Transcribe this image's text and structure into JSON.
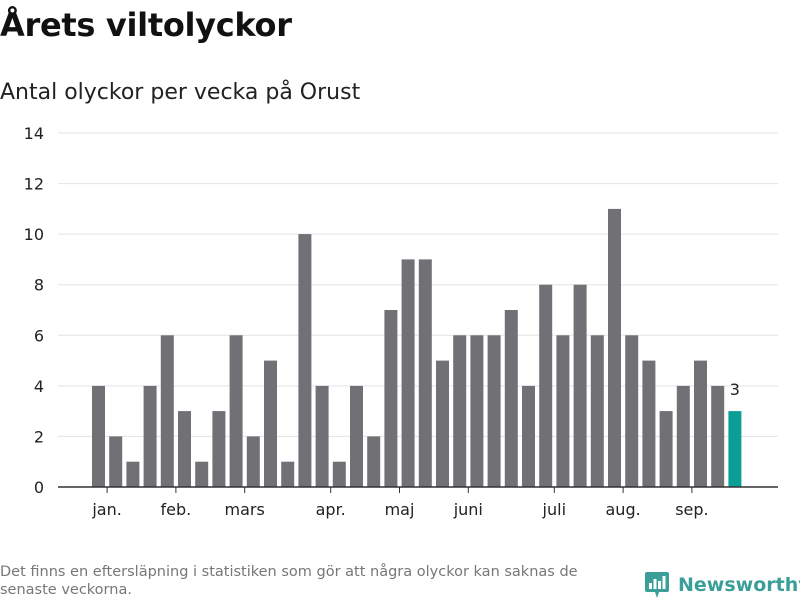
{
  "header": {
    "title": "Årets viltolyckor",
    "subtitle": "Antal olyckor per vecka på Orust"
  },
  "footer": {
    "note": "Det finns en eftersläpning i statistiken som gör att några olyckor kan saknas de senaste veckorna.",
    "brand": "Newsworthy"
  },
  "colors": {
    "bar": "#717075",
    "highlight": "#0a9e96",
    "grid": "#e3e3e3",
    "axis": "#333333"
  },
  "chart_data": {
    "type": "bar",
    "title": "Antal olyckor per vecka på Orust",
    "xlabel": "",
    "ylabel": "",
    "ylim": [
      0,
      14
    ],
    "yticks": [
      0,
      2,
      4,
      6,
      8,
      10,
      12,
      14
    ],
    "grid": true,
    "values": [
      4,
      2,
      1,
      4,
      6,
      3,
      1,
      3,
      6,
      2,
      5,
      1,
      10,
      4,
      1,
      4,
      2,
      7,
      9,
      9,
      5,
      6,
      6,
      6,
      7,
      4,
      8,
      6,
      8,
      6,
      11,
      6,
      5,
      3,
      4,
      5,
      4,
      3
    ],
    "highlight_last": true,
    "last_label": "3",
    "month_labels": [
      {
        "label": "jan.",
        "bar": 0.5
      },
      {
        "label": "feb.",
        "bar": 4.5
      },
      {
        "label": "mars",
        "bar": 8.5
      },
      {
        "label": "apr.",
        "bar": 13.5
      },
      {
        "label": "maj",
        "bar": 17.5
      },
      {
        "label": "juni",
        "bar": 21.5
      },
      {
        "label": "juli",
        "bar": 26.5
      },
      {
        "label": "aug.",
        "bar": 30.5
      },
      {
        "label": "sep.",
        "bar": 34.5
      }
    ]
  }
}
